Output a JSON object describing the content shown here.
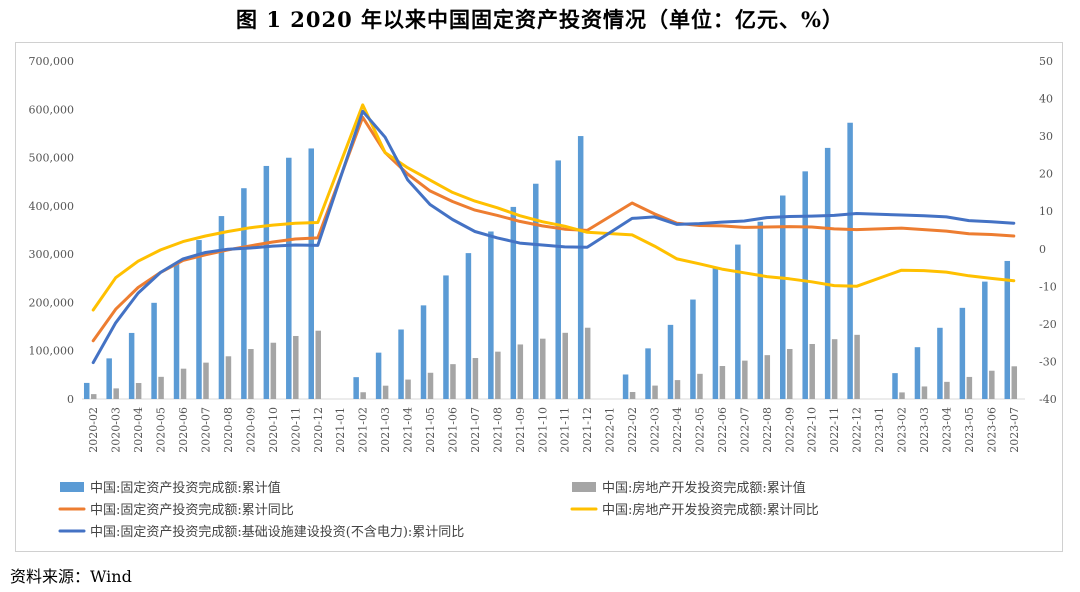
{
  "title": "图 1    2020 年以来中国固定资产投资情况（单位：亿元、%）",
  "source": "资料来源：Wind",
  "chart_data": {
    "type": "bar",
    "categories": [
      "2020-02",
      "2020-03",
      "2020-04",
      "2020-05",
      "2020-06",
      "2020-07",
      "2020-08",
      "2020-09",
      "2020-10",
      "2020-11",
      "2020-12",
      "2021-01",
      "2021-02",
      "2021-03",
      "2021-04",
      "2021-05",
      "2021-06",
      "2021-07",
      "2021-08",
      "2021-09",
      "2021-10",
      "2021-11",
      "2021-12",
      "2022-01",
      "2022-02",
      "2022-03",
      "2022-04",
      "2022-05",
      "2022-06",
      "2022-07",
      "2022-08",
      "2022-09",
      "2022-10",
      "2022-11",
      "2022-12",
      "2023-01",
      "2023-02",
      "2023-03",
      "2023-04",
      "2023-05",
      "2023-06",
      "2023-07"
    ],
    "y_left": {
      "min": 0,
      "max": 700000,
      "step": 100000,
      "ticks": [
        "0",
        "100,000",
        "200,000",
        "300,000",
        "400,000",
        "500,000",
        "600,000",
        "700,000"
      ]
    },
    "y_right": {
      "min": -40,
      "max": 50,
      "step": 10,
      "ticks": [
        "-40",
        "-30",
        "-20",
        "-10",
        "0",
        "10",
        "20",
        "30",
        "40",
        "50"
      ]
    },
    "series": [
      {
        "name": "中国:固定资产投资完成额:累计值",
        "kind": "bar",
        "axis": "left",
        "color": "#5b9bd5",
        "values": [
          33323,
          84145,
          136824,
          199194,
          281603,
          329214,
          378834,
          436530,
          482655,
          499650,
          518907,
          null,
          45236,
          95994,
          143917,
          193917,
          255900,
          302137,
          346913,
          397827,
          445823,
          494082,
          544547,
          null,
          50763,
          104872,
          153544,
          205964,
          271430,
          319812,
          367106,
          421412,
          471459,
          520043,
          572138,
          null,
          53577,
          107282,
          147482,
          188815,
          243113,
          285898
        ]
      },
      {
        "name": "中国:房地产开发投资完成额:累计值",
        "kind": "bar",
        "axis": "left",
        "color": "#a5a5a5",
        "values": [
          10115,
          21963,
          33103,
          45920,
          62780,
          75325,
          88454,
          103484,
          116556,
          130492,
          141443,
          null,
          13986,
          27576,
          40240,
          54318,
          72179,
          84895,
          98061,
          112947,
          124934,
          137085,
          147602,
          null,
          14499,
          27765,
          39154,
          52134,
          68314,
          79462,
          90809,
          103559,
          113945,
          123863,
          132895,
          null,
          13669,
          25974,
          35514,
          45701,
          58550,
          67717
        ]
      },
      {
        "name": "中国:固定资产投资完成额:累计同比",
        "kind": "line",
        "axis": "right",
        "color": "#ed7d31",
        "values": [
          -24.5,
          -16.1,
          -10.3,
          -6.3,
          -3.1,
          -1.6,
          -0.3,
          0.8,
          1.8,
          2.6,
          2.9,
          null,
          35.0,
          25.6,
          19.9,
          15.4,
          12.6,
          10.3,
          8.9,
          7.3,
          6.1,
          5.2,
          4.9,
          null,
          12.2,
          9.3,
          6.8,
          6.2,
          6.1,
          5.7,
          5.8,
          5.9,
          5.8,
          5.3,
          5.1,
          null,
          5.5,
          5.1,
          4.7,
          4.0,
          3.8,
          3.4
        ]
      },
      {
        "name": "中国:房地产开发投资完成额:累计同比",
        "kind": "line",
        "axis": "right",
        "color": "#ffc000",
        "values": [
          -16.3,
          -7.7,
          -3.3,
          -0.3,
          1.9,
          3.4,
          4.6,
          5.6,
          6.3,
          6.8,
          7.0,
          null,
          38.3,
          25.6,
          21.6,
          18.3,
          15.0,
          12.7,
          10.9,
          8.8,
          7.2,
          6.0,
          4.4,
          null,
          3.7,
          0.7,
          -2.7,
          -4.0,
          -5.4,
          -6.4,
          -7.4,
          -8.0,
          -8.8,
          -9.8,
          -10.0,
          null,
          -5.7,
          -5.8,
          -6.2,
          -7.2,
          -7.9,
          -8.5
        ]
      },
      {
        "name": "中国:固定资产投资完成额:基础设施建设投资(不含电力):累计同比",
        "kind": "line",
        "axis": "right",
        "color": "#4472c4",
        "values": [
          -30.3,
          -19.7,
          -11.8,
          -6.3,
          -2.7,
          -1.0,
          -0.1,
          0.2,
          0.7,
          1.0,
          0.9,
          null,
          36.6,
          29.7,
          18.4,
          11.8,
          7.8,
          4.6,
          2.9,
          1.5,
          1.0,
          0.5,
          0.4,
          null,
          8.1,
          8.5,
          6.5,
          6.7,
          7.1,
          7.4,
          8.3,
          8.6,
          8.7,
          8.9,
          9.4,
          null,
          9.0,
          8.8,
          8.5,
          7.5,
          7.2,
          6.8
        ]
      }
    ]
  }
}
